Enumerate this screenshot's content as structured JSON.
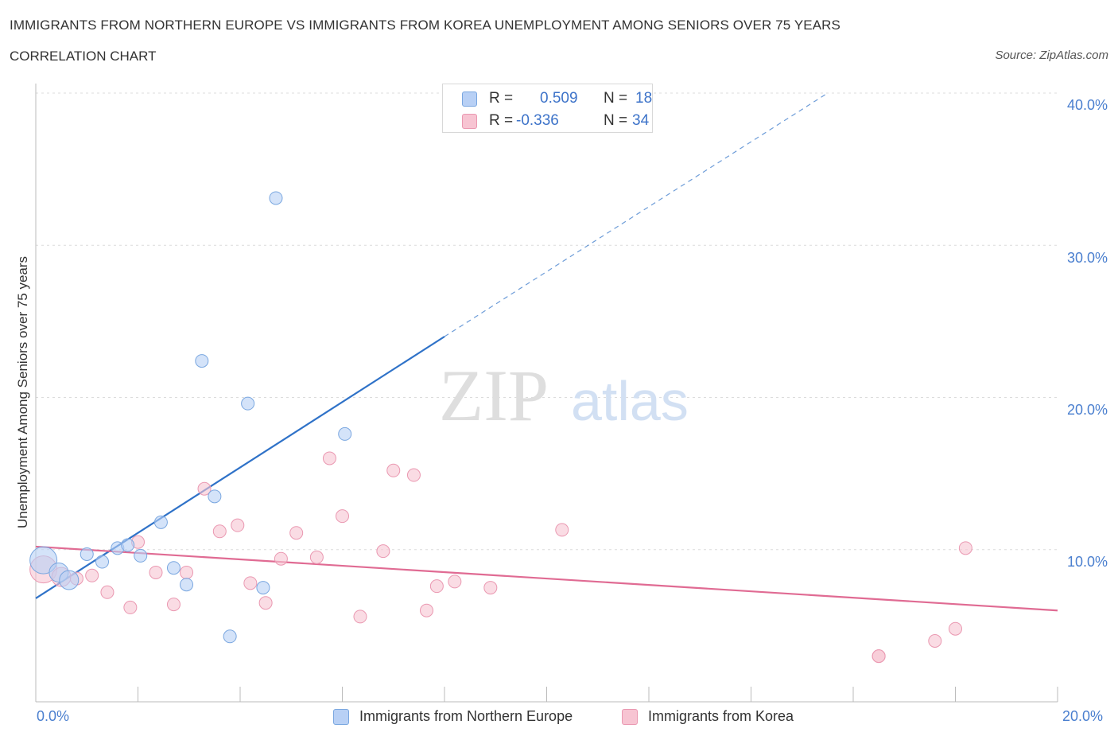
{
  "header": {
    "title": "IMMIGRANTS FROM NORTHERN EUROPE VS IMMIGRANTS FROM KOREA UNEMPLOYMENT AMONG SENIORS OVER 75 YEARS",
    "subtitle": "CORRELATION CHART",
    "source": "Source: ZipAtlas.com"
  },
  "watermark": {
    "zip": "ZIP",
    "atlas": "atlas"
  },
  "legend": {
    "series1": {
      "r_label": "R =",
      "r_value": "0.509",
      "n_label": "N =",
      "n_value": "18"
    },
    "series2": {
      "r_label": "R =",
      "r_value": "-0.336",
      "n_label": "N =",
      "n_value": "34"
    }
  },
  "colors": {
    "blue_fill": "#b8d0f5",
    "blue_stroke": "#7aa7e0",
    "blue_line": "#2f72c8",
    "pink_fill": "#f7c4d2",
    "pink_stroke": "#ea98b1",
    "pink_line": "#e06b93",
    "grid": "#dcdcdc",
    "axis_text": "#4a7fcf"
  },
  "chart_data": {
    "type": "scatter",
    "title": "IMMIGRANTS FROM NORTHERN EUROPE VS IMMIGRANTS FROM KOREA UNEMPLOYMENT AMONG SENIORS OVER 75 YEARS",
    "xlabel": "",
    "ylabel": "Unemployment Among Seniors over 75 years",
    "xlim": [
      0,
      20
    ],
    "ylim": [
      0,
      40
    ],
    "x_tick_labels": [
      "0.0%",
      "20.0%"
    ],
    "y_ticks": [
      10,
      20,
      30,
      40
    ],
    "y_tick_labels": [
      "10.0%",
      "20.0%",
      "30.0%",
      "40.0%"
    ],
    "grid": true,
    "legend_position": "bottom",
    "series": [
      {
        "name": "Immigrants from Northern Europe",
        "color": "blue",
        "r": 0.509,
        "n": 18,
        "points": [
          {
            "x": 0.15,
            "y": 9.3,
            "s": 3
          },
          {
            "x": 0.45,
            "y": 8.5,
            "s": 2
          },
          {
            "x": 0.65,
            "y": 8.0,
            "s": 2
          },
          {
            "x": 1.0,
            "y": 9.7,
            "s": 1
          },
          {
            "x": 1.3,
            "y": 9.2,
            "s": 1
          },
          {
            "x": 1.6,
            "y": 10.1,
            "s": 1
          },
          {
            "x": 1.8,
            "y": 10.3,
            "s": 1
          },
          {
            "x": 2.05,
            "y": 9.6,
            "s": 1
          },
          {
            "x": 2.45,
            "y": 11.8,
            "s": 1
          },
          {
            "x": 2.7,
            "y": 8.8,
            "s": 1
          },
          {
            "x": 2.95,
            "y": 7.7,
            "s": 1
          },
          {
            "x": 3.25,
            "y": 22.4,
            "s": 1
          },
          {
            "x": 3.5,
            "y": 13.5,
            "s": 1
          },
          {
            "x": 3.8,
            "y": 4.3,
            "s": 1
          },
          {
            "x": 4.15,
            "y": 19.6,
            "s": 1
          },
          {
            "x": 4.45,
            "y": 7.5,
            "s": 1
          },
          {
            "x": 4.7,
            "y": 33.1,
            "s": 1
          },
          {
            "x": 6.05,
            "y": 17.6,
            "s": 1
          }
        ],
        "trend": {
          "x0": 0,
          "y0": 6.8,
          "x1": 8.0,
          "y1": 24.0,
          "dash_to_x": 15.5,
          "dash_to_y": 40.0
        }
      },
      {
        "name": "Immigrants from Korea",
        "color": "pink",
        "r": -0.336,
        "n": 34,
        "points": [
          {
            "x": 0.15,
            "y": 8.7,
            "s": 3
          },
          {
            "x": 0.5,
            "y": 8.2,
            "s": 2
          },
          {
            "x": 0.8,
            "y": 8.1,
            "s": 1
          },
          {
            "x": 1.1,
            "y": 8.3,
            "s": 1
          },
          {
            "x": 1.4,
            "y": 7.2,
            "s": 1
          },
          {
            "x": 1.85,
            "y": 6.2,
            "s": 1
          },
          {
            "x": 2.0,
            "y": 10.5,
            "s": 1
          },
          {
            "x": 2.35,
            "y": 8.5,
            "s": 1
          },
          {
            "x": 2.7,
            "y": 6.4,
            "s": 1
          },
          {
            "x": 2.95,
            "y": 8.5,
            "s": 1
          },
          {
            "x": 3.3,
            "y": 14.0,
            "s": 1
          },
          {
            "x": 3.6,
            "y": 11.2,
            "s": 1
          },
          {
            "x": 3.95,
            "y": 11.6,
            "s": 1
          },
          {
            "x": 4.2,
            "y": 7.8,
            "s": 1
          },
          {
            "x": 4.5,
            "y": 6.5,
            "s": 1
          },
          {
            "x": 4.8,
            "y": 9.4,
            "s": 1
          },
          {
            "x": 5.1,
            "y": 11.1,
            "s": 1
          },
          {
            "x": 5.5,
            "y": 9.5,
            "s": 1
          },
          {
            "x": 5.75,
            "y": 16.0,
            "s": 1
          },
          {
            "x": 6.0,
            "y": 12.2,
            "s": 1
          },
          {
            "x": 6.35,
            "y": 5.6,
            "s": 1
          },
          {
            "x": 6.8,
            "y": 9.9,
            "s": 1
          },
          {
            "x": 7.0,
            "y": 15.2,
            "s": 1
          },
          {
            "x": 7.4,
            "y": 14.9,
            "s": 1
          },
          {
            "x": 7.65,
            "y": 6.0,
            "s": 1
          },
          {
            "x": 7.85,
            "y": 7.6,
            "s": 1
          },
          {
            "x": 8.2,
            "y": 7.9,
            "s": 1
          },
          {
            "x": 8.9,
            "y": 7.5,
            "s": 1
          },
          {
            "x": 10.3,
            "y": 11.3,
            "s": 1
          },
          {
            "x": 16.5,
            "y": 3.0,
            "s": 1
          },
          {
            "x": 16.5,
            "y": 3.0,
            "s": 1
          },
          {
            "x": 17.6,
            "y": 4.0,
            "s": 1
          },
          {
            "x": 18.0,
            "y": 4.8,
            "s": 1
          },
          {
            "x": 18.2,
            "y": 10.1,
            "s": 1
          }
        ],
        "trend": {
          "x0": 0,
          "y0": 10.2,
          "x1": 20.0,
          "y1": 6.0
        }
      }
    ]
  }
}
